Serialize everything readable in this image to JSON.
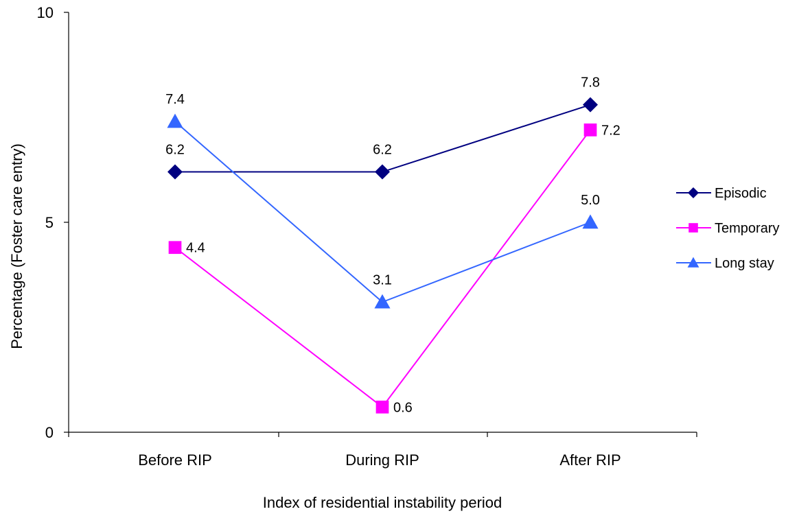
{
  "chart_data": {
    "type": "line",
    "title": "",
    "xlabel": "Index of residential instability period",
    "ylabel": "Percentage (Foster care entry)",
    "categories": [
      "Before RIP",
      "During RIP",
      "After RIP"
    ],
    "ylim": [
      0,
      10
    ],
    "yticks": [
      0,
      5,
      10
    ],
    "grid": false,
    "legend_position": "right",
    "series": [
      {
        "name": "Episodic",
        "values": [
          6.2,
          6.2,
          7.8
        ],
        "labels": [
          "6.2",
          "6.2",
          "7.8"
        ],
        "color": "#000080",
        "marker": "diamond",
        "label_position": [
          "above",
          "above",
          "above"
        ]
      },
      {
        "name": "Temporary",
        "values": [
          4.4,
          0.6,
          7.2
        ],
        "labels": [
          "4.4",
          "0.6",
          "7.2"
        ],
        "color": "#ff00ff",
        "marker": "square",
        "label_position": [
          "right",
          "right",
          "right"
        ]
      },
      {
        "name": "Long stay",
        "values": [
          7.4,
          3.1,
          5.0
        ],
        "labels": [
          "7.4",
          "3.1",
          "5.0"
        ],
        "color": "#3366ff",
        "marker": "triangle",
        "label_position": [
          "above",
          "above",
          "above"
        ]
      }
    ]
  }
}
